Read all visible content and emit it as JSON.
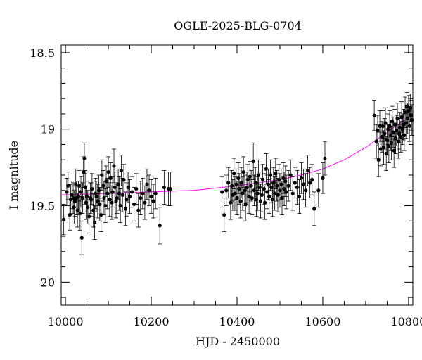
{
  "chart_data": {
    "type": "scatter",
    "title": "OGLE-2025-BLG-0704",
    "xlabel": "HJD - 2450000",
    "ylabel": "I magnitude",
    "xlim": [
      9990,
      10810
    ],
    "ylim": [
      20.15,
      18.45
    ],
    "y_inverted": true,
    "grid": false,
    "x_ticks": [
      10000,
      10200,
      10400,
      10600,
      10800
    ],
    "x_tick_labels": [
      "10000",
      "10200",
      "10400",
      "10600",
      "10800"
    ],
    "y_ticks": [
      18.5,
      19,
      19.5,
      20
    ],
    "y_tick_labels": [
      "18.5",
      "19",
      "19.5",
      "20"
    ],
    "colors": {
      "points": "#000000",
      "model": "#ff00ff",
      "errorbars": "#000000"
    },
    "model_curve": {
      "x": [
        9990,
        10100,
        10200,
        10300,
        10400,
        10450,
        10500,
        10550,
        10600,
        10650,
        10700,
        10740,
        10770,
        10790,
        10810
      ],
      "y": [
        19.43,
        19.42,
        19.41,
        19.4,
        19.37,
        19.35,
        19.33,
        19.3,
        19.26,
        19.2,
        19.12,
        19.04,
        18.98,
        18.94,
        18.9
      ]
    },
    "series": [
      {
        "x": [
          9996,
          10003,
          10006,
          10010,
          10012,
          10015,
          10018,
          10020,
          10022,
          10024,
          10026,
          10028,
          10030,
          10032,
          10034,
          10036,
          10038,
          10040,
          10042,
          10044,
          10046,
          10048,
          10050,
          10052,
          10055,
          10058,
          10060,
          10062,
          10065,
          10068,
          10070,
          10072,
          10075,
          10078,
          10080,
          10083,
          10085,
          10088,
          10090,
          10093,
          10095,
          10098,
          10100,
          10103,
          10105,
          10108,
          10110,
          10113,
          10115,
          10118,
          10120,
          10123,
          10125,
          10128,
          10130,
          10133,
          10136,
          10140,
          10143,
          10146,
          10150,
          10155,
          10160,
          10165,
          10170,
          10175,
          10180,
          10185,
          10190,
          10195,
          10200,
          10205,
          10210,
          10220,
          10230,
          10240,
          10245
        ],
        "y": [
          19.59,
          19.41,
          19.37,
          19.56,
          19.46,
          19.43,
          19.45,
          19.51,
          19.47,
          19.36,
          19.45,
          19.53,
          19.44,
          19.37,
          19.55,
          19.41,
          19.71,
          19.45,
          19.28,
          19.19,
          19.38,
          19.48,
          19.44,
          19.51,
          19.57,
          19.45,
          19.46,
          19.39,
          19.53,
          19.61,
          19.42,
          19.44,
          19.47,
          19.4,
          19.49,
          19.56,
          19.3,
          19.37,
          19.45,
          19.5,
          19.34,
          19.42,
          19.28,
          19.46,
          19.32,
          19.48,
          19.41,
          19.24,
          19.38,
          19.47,
          19.45,
          19.36,
          19.42,
          19.5,
          19.27,
          19.43,
          19.33,
          19.52,
          19.46,
          19.38,
          19.44,
          19.41,
          19.49,
          19.39,
          19.53,
          19.45,
          19.42,
          19.48,
          19.36,
          19.4,
          19.44,
          19.47,
          19.42,
          19.63,
          19.38,
          19.39,
          19.39
        ],
        "yerr": [
          0.1,
          0.09,
          0.09,
          0.1,
          0.1,
          0.09,
          0.1,
          0.11,
          0.1,
          0.1,
          0.11,
          0.11,
          0.1,
          0.1,
          0.11,
          0.1,
          0.11,
          0.1,
          0.1,
          0.1,
          0.11,
          0.11,
          0.1,
          0.11,
          0.11,
          0.1,
          0.11,
          0.1,
          0.11,
          0.11,
          0.1,
          0.1,
          0.11,
          0.1,
          0.11,
          0.11,
          0.1,
          0.1,
          0.11,
          0.11,
          0.1,
          0.1,
          0.1,
          0.11,
          0.1,
          0.11,
          0.1,
          0.11,
          0.1,
          0.11,
          0.1,
          0.1,
          0.11,
          0.11,
          0.1,
          0.11,
          0.1,
          0.11,
          0.11,
          0.1,
          0.11,
          0.1,
          0.11,
          0.1,
          0.11,
          0.11,
          0.1,
          0.11,
          0.1,
          0.1,
          0.11,
          0.11,
          0.1,
          0.12,
          0.11,
          0.11,
          0.11
        ]
      },
      {
        "x": [
          10365,
          10370,
          10375,
          10380,
          10385,
          10388,
          10390,
          10393,
          10395,
          10398,
          10400,
          10403,
          10405,
          10408,
          10410,
          10413,
          10415,
          10418,
          10420,
          10423,
          10425,
          10428,
          10430,
          10433,
          10435,
          10438,
          10440,
          10443,
          10445,
          10448,
          10450,
          10453,
          10455,
          10458,
          10460,
          10463,
          10465,
          10468,
          10470,
          10473,
          10475,
          10478,
          10480,
          10483,
          10485,
          10488,
          10490,
          10493,
          10495,
          10498,
          10500,
          10503,
          10505,
          10508,
          10510,
          10513,
          10515,
          10520,
          10525,
          10530,
          10535,
          10540,
          10545,
          10550,
          10555,
          10560,
          10565,
          10570,
          10575,
          10580,
          10590,
          10600,
          10605
        ],
        "y": [
          19.41,
          19.56,
          19.4,
          19.35,
          19.48,
          19.37,
          19.43,
          19.29,
          19.42,
          19.36,
          19.45,
          19.32,
          19.39,
          19.47,
          19.35,
          19.42,
          19.28,
          19.4,
          19.49,
          19.38,
          19.33,
          19.44,
          19.31,
          19.37,
          19.45,
          19.21,
          19.4,
          19.35,
          19.46,
          19.42,
          19.3,
          19.38,
          19.47,
          19.43,
          19.33,
          19.39,
          19.48,
          19.26,
          19.41,
          19.36,
          19.44,
          19.3,
          19.38,
          19.46,
          19.35,
          19.42,
          19.29,
          19.37,
          19.43,
          19.33,
          19.4,
          19.36,
          19.45,
          19.32,
          19.39,
          19.34,
          19.41,
          19.37,
          19.3,
          19.42,
          19.35,
          19.38,
          19.44,
          19.32,
          19.36,
          19.4,
          19.27,
          19.35,
          19.33,
          19.52,
          19.4,
          19.32,
          19.19
        ],
        "yerr": [
          0.1,
          0.11,
          0.1,
          0.1,
          0.11,
          0.1,
          0.1,
          0.1,
          0.11,
          0.1,
          0.11,
          0.1,
          0.1,
          0.11,
          0.1,
          0.11,
          0.1,
          0.1,
          0.11,
          0.1,
          0.1,
          0.11,
          0.1,
          0.1,
          0.11,
          0.12,
          0.1,
          0.1,
          0.11,
          0.11,
          0.1,
          0.1,
          0.11,
          0.11,
          0.1,
          0.1,
          0.11,
          0.1,
          0.11,
          0.1,
          0.11,
          0.1,
          0.1,
          0.11,
          0.1,
          0.11,
          0.1,
          0.1,
          0.11,
          0.1,
          0.11,
          0.1,
          0.11,
          0.1,
          0.11,
          0.1,
          0.11,
          0.1,
          0.1,
          0.11,
          0.1,
          0.11,
          0.11,
          0.1,
          0.1,
          0.11,
          0.1,
          0.1,
          0.1,
          0.11,
          0.11,
          0.1,
          0.11
        ]
      },
      {
        "x": [
          10720,
          10725,
          10728,
          10730,
          10733,
          10735,
          10738,
          10740,
          10742,
          10744,
          10746,
          10748,
          10750,
          10752,
          10754,
          10756,
          10758,
          10760,
          10762,
          10764,
          10766,
          10768,
          10770,
          10772,
          10774,
          10776,
          10778,
          10780,
          10782,
          10784,
          10786,
          10788,
          10790,
          10792,
          10794,
          10796,
          10798,
          10800,
          10802,
          10804,
          10806,
          10808
        ],
        "y": [
          18.91,
          19.08,
          19.01,
          19.2,
          18.98,
          19.13,
          19.05,
          18.98,
          19.12,
          19.03,
          18.96,
          19.16,
          19.07,
          19.0,
          19.11,
          18.98,
          19.04,
          19.09,
          18.95,
          19.02,
          19.14,
          18.97,
          19.06,
          19.01,
          18.93,
          19.08,
          19.03,
          18.99,
          19.05,
          18.92,
          19.0,
          18.97,
          19.04,
          18.89,
          18.96,
          18.85,
          18.93,
          18.88,
          18.98,
          18.86,
          18.91,
          18.94
        ],
        "yerr": [
          0.1,
          0.11,
          0.1,
          0.11,
          0.1,
          0.11,
          0.1,
          0.1,
          0.11,
          0.1,
          0.1,
          0.11,
          0.1,
          0.1,
          0.11,
          0.1,
          0.1,
          0.11,
          0.1,
          0.1,
          0.11,
          0.1,
          0.1,
          0.1,
          0.1,
          0.11,
          0.1,
          0.1,
          0.1,
          0.1,
          0.1,
          0.1,
          0.1,
          0.1,
          0.1,
          0.09,
          0.1,
          0.1,
          0.1,
          0.09,
          0.1,
          0.1
        ]
      }
    ]
  }
}
